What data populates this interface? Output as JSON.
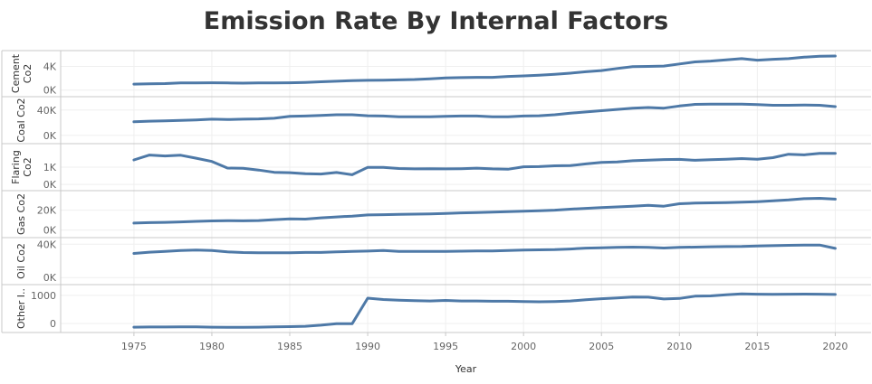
{
  "chart_data": {
    "type": "line",
    "title": "Emission Rate By Internal Factors",
    "xlabel": "Year",
    "line_color": "#4e79a7",
    "x": [
      1975,
      1976,
      1977,
      1978,
      1979,
      1980,
      1981,
      1982,
      1983,
      1984,
      1985,
      1986,
      1987,
      1988,
      1989,
      1990,
      1991,
      1992,
      1993,
      1994,
      1995,
      1996,
      1997,
      1998,
      1999,
      2000,
      2001,
      2002,
      2003,
      2004,
      2005,
      2006,
      2007,
      2008,
      2009,
      2010,
      2011,
      2012,
      2013,
      2014,
      2015,
      2016,
      2017,
      2018,
      2019,
      2020
    ],
    "x_ticks": [
      1975,
      1980,
      1985,
      1990,
      1995,
      2000,
      2005,
      2010,
      2015,
      2020
    ],
    "xlim": [
      1970.3,
      2022.3
    ],
    "series": [
      {
        "name": "Cement Co2",
        "label_lines": [
          "Cement",
          "Co2"
        ],
        "ylim": [
          -350,
          5900
        ],
        "y_ticks": [
          0,
          4000
        ],
        "y_tick_labels": [
          "0K",
          "4K"
        ],
        "values": [
          1000,
          1050,
          1100,
          1200,
          1220,
          1230,
          1200,
          1180,
          1200,
          1220,
          1230,
          1300,
          1400,
          1500,
          1600,
          1650,
          1680,
          1720,
          1780,
          1900,
          2050,
          2100,
          2150,
          2150,
          2300,
          2400,
          2500,
          2650,
          2850,
          3100,
          3300,
          3650,
          3950,
          4000,
          4050,
          4400,
          4750,
          4900,
          5100,
          5300,
          5050,
          5200,
          5300,
          5550,
          5700,
          5750
        ]
      },
      {
        "name": "Coal Co2",
        "label_lines": [
          "Coal Co2"
        ],
        "ylim": [
          -6000,
          54000
        ],
        "y_ticks": [
          0,
          40000
        ],
        "y_tick_labels": [
          "0K",
          "40K"
        ],
        "values": [
          21500,
          22500,
          23000,
          23500,
          24500,
          25500,
          25000,
          25500,
          26000,
          27000,
          30000,
          30500,
          31500,
          32500,
          32500,
          31000,
          30500,
          29500,
          29500,
          29500,
          30000,
          30500,
          30500,
          29500,
          29500,
          30500,
          31000,
          32500,
          35000,
          37000,
          39000,
          41000,
          43000,
          44000,
          43000,
          46500,
          49000,
          49500,
          49500,
          49500,
          48500,
          47500,
          47500,
          48000,
          47500,
          45500
        ]
      },
      {
        "name": "Flaring Co2",
        "label_lines": [
          "Flaring",
          "Co2"
        ],
        "ylim": [
          -100,
          2100
        ],
        "y_ticks": [
          0,
          1000
        ],
        "y_tick_labels": [
          "0K",
          "1K"
        ],
        "values": [
          1420,
          1700,
          1650,
          1690,
          1520,
          1330,
          950,
          930,
          830,
          700,
          680,
          620,
          600,
          690,
          560,
          990,
          990,
          920,
          900,
          910,
          900,
          910,
          940,
          900,
          880,
          1020,
          1030,
          1080,
          1090,
          1190,
          1280,
          1300,
          1370,
          1410,
          1440,
          1450,
          1400,
          1430,
          1460,
          1500,
          1460,
          1550,
          1750,
          1710,
          1800,
          1800
        ]
      },
      {
        "name": "Gas Co2",
        "label_lines": [
          "Gas Co2"
        ],
        "ylim": [
          -3000,
          35000
        ],
        "y_ticks": [
          0,
          20000
        ],
        "y_tick_labels": [
          "0K",
          "20K"
        ],
        "values": [
          7000,
          7500,
          7800,
          8200,
          8800,
          9200,
          9500,
          9300,
          9600,
          10500,
          11200,
          11000,
          12300,
          13200,
          14000,
          15200,
          15500,
          15700,
          16000,
          16200,
          16600,
          17300,
          17600,
          18000,
          18500,
          19000,
          19400,
          20000,
          21000,
          21800,
          22500,
          23200,
          24000,
          24900,
          24000,
          26400,
          27000,
          27300,
          27500,
          27900,
          28500,
          29300,
          30200,
          31500,
          31800,
          31000
        ]
      },
      {
        "name": "Oil Co2",
        "label_lines": [
          "Oil Co2"
        ],
        "ylim": [
          -3000,
          42500
        ],
        "y_ticks": [
          0,
          40000
        ],
        "y_tick_labels": [
          "0K",
          "40K"
        ],
        "values": [
          29000,
          30500,
          31500,
          32500,
          33000,
          32500,
          30800,
          30000,
          29800,
          29800,
          29800,
          30200,
          30200,
          30800,
          31300,
          31800,
          32500,
          31500,
          31300,
          31300,
          31300,
          31700,
          31900,
          32000,
          32500,
          33000,
          33300,
          33500,
          34300,
          35300,
          35800,
          36300,
          36500,
          36300,
          35500,
          36300,
          36500,
          37000,
          37200,
          37300,
          37800,
          38300,
          38700,
          39000,
          39000,
          35000
        ]
      },
      {
        "name": "Other Industry Co2",
        "label_lines": [
          "Other I.."
        ],
        "ylim": [
          -160,
          1220
        ],
        "y_ticks": [
          0,
          1000
        ],
        "y_tick_labels": [
          "0",
          "1000"
        ],
        "values": [
          -130,
          -125,
          -125,
          -120,
          -118,
          -130,
          -135,
          -138,
          -130,
          -120,
          -112,
          -100,
          -60,
          -5,
          -10,
          900,
          850,
          830,
          810,
          800,
          820,
          800,
          800,
          790,
          790,
          780,
          770,
          780,
          800,
          840,
          880,
          910,
          940,
          935,
          870,
          890,
          970,
          980,
          1020,
          1050,
          1040,
          1035,
          1040,
          1045,
          1040,
          1030
        ]
      }
    ]
  }
}
